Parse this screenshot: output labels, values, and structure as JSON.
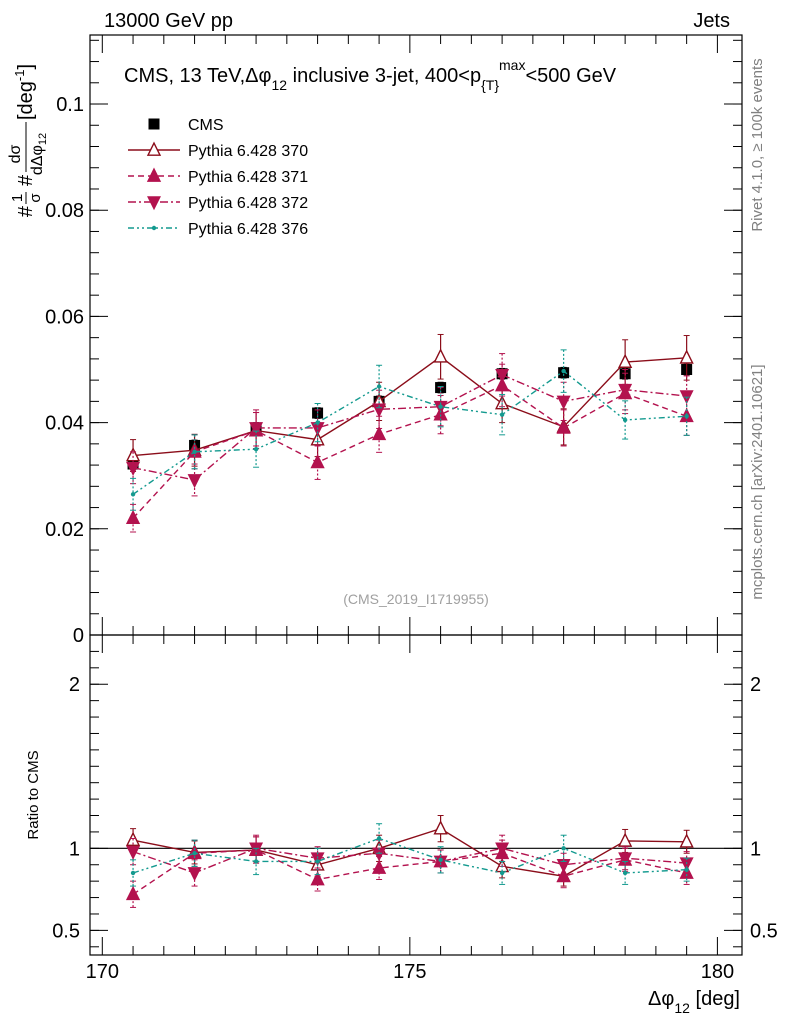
{
  "header": {
    "energy_label": "13000 GeV pp",
    "process_label": "Jets",
    "side_label_top": "Rivet 4.1.0, ≥ 100k events",
    "side_label_bottom": "mcplots.cern.ch [arXiv:2401.10621]"
  },
  "chart_data": [
    {
      "type": "scatter",
      "title": "CMS, 13 TeV,Δφ",
      "title_sub": "12",
      "title_rest": " inclusive 3-jet, 400<p",
      "title_sub2": "{T}",
      "title_sup2": "max",
      "title_end": "<500 GeV",
      "analysis_label": "(CMS_2019_I1719955)",
      "ylabel": "#¹⁄σ # dσ/dΔφ₁₂ [deg⁻¹]",
      "ylabel_prefix": "#",
      "ylabel_fraction_num": "1",
      "ylabel_fraction_den": "σ",
      "ylabel_mid": "#",
      "ylabel_dnum": "dσ",
      "ylabel_dden": "dΔφ",
      "ylabel_dden_sub": "12",
      "ylabel_unit": " [deg",
      "ylabel_unit_sup": "-1",
      "ylabel_unit_end": "]",
      "xlim": [
        169.8,
        180.4
      ],
      "ylim": [
        0,
        0.113
      ],
      "y_ticks": [
        0,
        0.02,
        0.04,
        0.06,
        0.08,
        0.1
      ],
      "y_tick_labels": [
        "0",
        "0.02",
        "0.04",
        "0.06",
        "0.08",
        "0.1"
      ],
      "x": [
        170.5,
        171.5,
        172.5,
        173.5,
        174.5,
        175.5,
        176.5,
        177.5,
        178.5,
        179.5
      ],
      "legend_location": "top-left",
      "series": [
        {
          "name": "CMS",
          "color": "#000000",
          "marker": "square",
          "line": "none",
          "values": [
            0.0322,
            0.0357,
            0.039,
            0.0418,
            0.044,
            0.0466,
            0.0492,
            0.0494,
            0.0492,
            0.05
          ],
          "errors": [
            0.001,
            0.001,
            0.001,
            0.001,
            0.001,
            0.001,
            0.001,
            0.001,
            0.001,
            0.001
          ]
        },
        {
          "name": "Pythia 6.428 370",
          "color": "#8b0d1a",
          "marker": "open-triangle-up",
          "line": "solid",
          "values": [
            0.0338,
            0.0348,
            0.0385,
            0.0368,
            0.044,
            0.0524,
            0.0436,
            0.0392,
            0.0514,
            0.0522
          ],
          "errors": [
            0.003,
            0.003,
            0.0034,
            0.0032,
            0.0036,
            0.0042,
            0.0036,
            0.0034,
            0.0042,
            0.0042
          ]
        },
        {
          "name": "Pythia 6.428 371",
          "color": "#b3124e",
          "marker": "filled-triangle-up",
          "line": "dashed",
          "values": [
            0.022,
            0.0345,
            0.0385,
            0.0325,
            0.0378,
            0.0415,
            0.047,
            0.039,
            0.0455,
            0.0412
          ],
          "errors": [
            0.0026,
            0.0032,
            0.0034,
            0.0032,
            0.0034,
            0.0036,
            0.004,
            0.0034,
            0.0038,
            0.0036
          ]
        },
        {
          "name": "Pythia 6.428 372",
          "color": "#b3124e",
          "marker": "filled-triangle-down",
          "line": "dashdot",
          "values": [
            0.0315,
            0.0292,
            0.039,
            0.039,
            0.0425,
            0.043,
            0.049,
            0.044,
            0.0462,
            0.045
          ],
          "errors": [
            0.003,
            0.003,
            0.0034,
            0.0034,
            0.0036,
            0.0036,
            0.004,
            0.0036,
            0.0038,
            0.0038
          ]
        },
        {
          "name": "Pythia 6.428 376",
          "color": "#139a8f",
          "marker": "dot",
          "line": "dashdotdot",
          "values": [
            0.0265,
            0.0345,
            0.035,
            0.04,
            0.0468,
            0.043,
            0.0415,
            0.0497,
            0.0405,
            0.0412
          ],
          "errors": [
            0.003,
            0.0032,
            0.0034,
            0.0036,
            0.004,
            0.0038,
            0.0038,
            0.004,
            0.0036,
            0.0036
          ]
        }
      ]
    },
    {
      "type": "scatter",
      "ylabel": "Ratio to CMS",
      "xlabel": "Δφ",
      "xlabel_sub": "12",
      "xlabel_unit": " [deg]",
      "xlim": [
        169.8,
        180.4
      ],
      "ylim": [
        0.35,
        2.3
      ],
      "x_ticks": [
        170,
        175,
        180
      ],
      "x_tick_labels": [
        "170",
        "175",
        "180"
      ],
      "y_ticks": [
        0.5,
        1,
        2
      ],
      "y_tick_labels": [
        "0.5",
        "1",
        "2"
      ],
      "reference_line": 1,
      "x": [
        170.5,
        171.5,
        172.5,
        173.5,
        174.5,
        175.5,
        176.5,
        177.5,
        178.5,
        179.5
      ],
      "series": [
        {
          "name": "Pythia 6.428 370",
          "color": "#8b0d1a",
          "marker": "open-triangle-up",
          "line": "solid",
          "values": [
            1.05,
            0.975,
            0.99,
            0.9,
            1.0,
            1.12,
            0.89,
            0.83,
            1.045,
            1.04
          ],
          "errors": [
            0.07,
            0.07,
            0.08,
            0.07,
            0.08,
            0.08,
            0.07,
            0.06,
            0.07,
            0.07
          ]
        },
        {
          "name": "Pythia 6.428 371",
          "color": "#b3124e",
          "marker": "filled-triangle-up",
          "line": "dashed",
          "values": [
            0.72,
            0.97,
            0.99,
            0.81,
            0.88,
            0.92,
            0.97,
            0.83,
            0.93,
            0.85
          ],
          "errors": [
            0.08,
            0.08,
            0.08,
            0.07,
            0.07,
            0.07,
            0.08,
            0.07,
            0.07,
            0.07
          ]
        },
        {
          "name": "Pythia 6.428 372",
          "color": "#b3124e",
          "marker": "filled-triangle-down",
          "line": "dashdot",
          "values": [
            0.98,
            0.85,
            1.0,
            0.94,
            0.97,
            0.92,
            1.0,
            0.9,
            0.94,
            0.91
          ],
          "errors": [
            0.08,
            0.08,
            0.08,
            0.07,
            0.08,
            0.07,
            0.08,
            0.07,
            0.07,
            0.07
          ]
        },
        {
          "name": "Pythia 6.428 376",
          "color": "#139a8f",
          "marker": "dot",
          "line": "dashdotdot",
          "values": [
            0.85,
            0.97,
            0.92,
            0.92,
            1.06,
            0.93,
            0.85,
            1.0,
            0.85,
            0.87
          ],
          "errors": [
            0.08,
            0.08,
            0.08,
            0.08,
            0.09,
            0.08,
            0.07,
            0.08,
            0.07,
            0.07
          ]
        }
      ]
    }
  ]
}
